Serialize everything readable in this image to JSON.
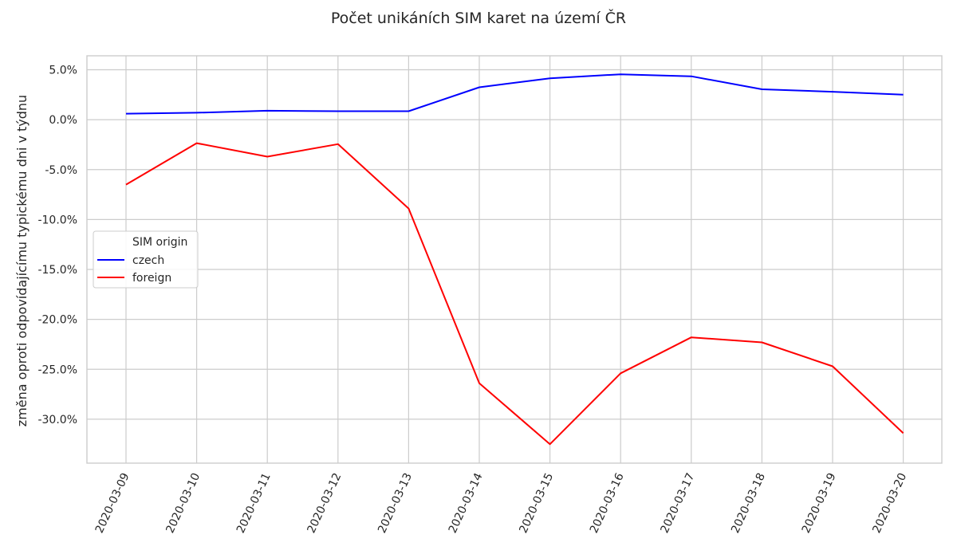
{
  "chart_data": {
    "type": "line",
    "title": "Počet unikáních SIM karet na území ČR",
    "xlabel": "",
    "ylabel": "změna oproti odpovídajícímu typickému dni v týdnu",
    "x": [
      "2020-03-09",
      "2020-03-10",
      "2020-03-11",
      "2020-03-12",
      "2020-03-13",
      "2020-03-14",
      "2020-03-15",
      "2020-03-16",
      "2020-03-17",
      "2020-03-18",
      "2020-03-19",
      "2020-03-20"
    ],
    "yticks": [
      5,
      0,
      -5,
      -10,
      -15,
      -20,
      -25,
      -30
    ],
    "ytick_labels": [
      "5.0%",
      "0.0%",
      "-5.0%",
      "-10.0%",
      "-15.0%",
      "-20.0%",
      "-25.0%",
      "-30.0%"
    ],
    "ylim": [
      -34.4,
      6.4
    ],
    "y_unit": "percent",
    "grid": true,
    "legend": {
      "title": "SIM origin",
      "placement": "center-left"
    },
    "series": [
      {
        "name": "czech",
        "color": "#0000ff",
        "values": [
          0.6,
          0.7,
          0.9,
          0.85,
          0.85,
          3.25,
          4.15,
          4.55,
          4.35,
          3.05,
          2.8,
          2.5
        ]
      },
      {
        "name": "foreign",
        "color": "#ff0000",
        "values": [
          -6.5,
          -2.35,
          -3.7,
          -2.45,
          -8.9,
          -26.4,
          -32.5,
          -25.4,
          -21.8,
          -22.3,
          -24.7,
          -31.4
        ]
      }
    ]
  }
}
